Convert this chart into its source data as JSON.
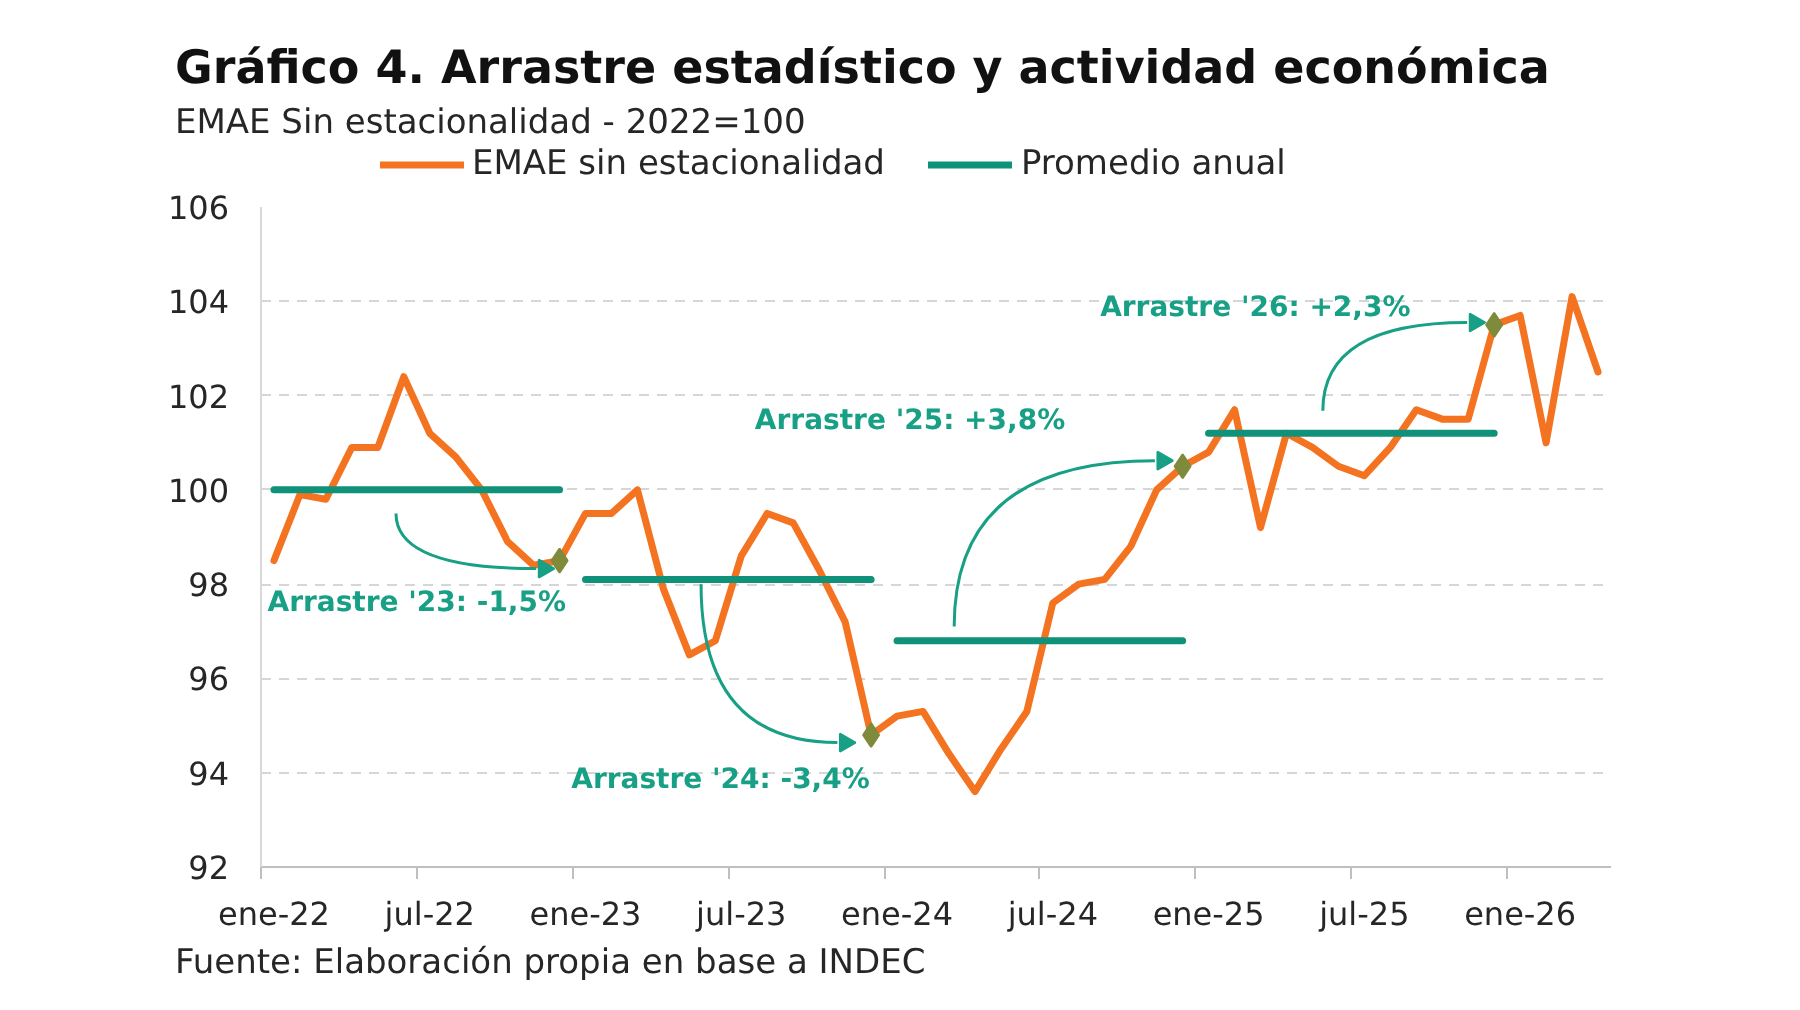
{
  "chart_data": {
    "type": "line",
    "title": "Gráfico 4. Arrastre estadístico y actividad económica",
    "subtitle": "EMAE Sin estacionalidad - 2022=100",
    "categories": [
      "ene-22",
      null,
      null,
      null,
      null,
      null,
      "jul-22",
      null,
      null,
      null,
      null,
      null,
      "ene-23",
      null,
      null,
      null,
      null,
      null,
      "jul-23",
      null,
      null,
      null,
      null,
      null,
      "ene-24",
      null,
      null,
      null,
      null,
      null,
      "jul-24",
      null,
      null,
      null,
      null,
      null,
      "ene-25",
      null,
      null,
      null,
      null,
      null,
      "jul-25",
      null,
      null,
      null,
      null,
      null,
      "ene-26",
      null,
      null,
      null
    ],
    "series": [
      {
        "name": "EMAE sin estacionalidad",
        "color": "#f47321",
        "values": [
          98.5,
          99.9,
          99.8,
          100.9,
          100.9,
          102.4,
          101.2,
          100.7,
          100.0,
          98.9,
          98.4,
          98.5,
          99.5,
          99.5,
          100.0,
          97.9,
          96.5,
          96.8,
          98.6,
          99.5,
          99.3,
          98.3,
          97.2,
          94.8,
          95.2,
          95.3,
          94.4,
          93.6,
          94.5,
          95.3,
          97.6,
          98.0,
          98.1,
          98.8,
          100.0,
          100.5,
          100.8,
          101.7,
          99.2,
          101.2,
          100.9,
          100.5,
          100.3,
          100.9,
          101.7,
          101.5,
          101.5,
          103.5,
          103.7,
          101.0,
          104.1,
          102.5
        ]
      },
      {
        "name": "Promedio anual",
        "color": "#10917a",
        "values": [
          100.0,
          100.0,
          100.0,
          100.0,
          100.0,
          100.0,
          100.0,
          100.0,
          100.0,
          100.0,
          100.0,
          100.0,
          null,
          null,
          null,
          null,
          null,
          null,
          null,
          null,
          null,
          null,
          null,
          null,
          null,
          null,
          null,
          null,
          null,
          null,
          null,
          null,
          null,
          null,
          null,
          null,
          null,
          null,
          null,
          null,
          null,
          null,
          null,
          null,
          null,
          null,
          null,
          null,
          null,
          null,
          null,
          null
        ]
      },
      {
        "color": "#10917a",
        "values": [
          null,
          null,
          null,
          null,
          null,
          null,
          null,
          null,
          null,
          null,
          null,
          null,
          98.1,
          98.1,
          98.1,
          98.1,
          98.1,
          98.1,
          98.1,
          98.1,
          98.1,
          98.1,
          98.1,
          98.1,
          null,
          null,
          null,
          null,
          null,
          null,
          null,
          null,
          null,
          null,
          null,
          null,
          null,
          null,
          null,
          null,
          null,
          null,
          null,
          null,
          null,
          null,
          null,
          null,
          null,
          null,
          null,
          null
        ]
      },
      {
        "color": "#10917a",
        "values": [
          null,
          null,
          null,
          null,
          null,
          null,
          null,
          null,
          null,
          null,
          null,
          null,
          null,
          null,
          null,
          null,
          null,
          null,
          null,
          null,
          null,
          null,
          null,
          null,
          96.8,
          96.8,
          96.8,
          96.8,
          96.8,
          96.8,
          96.8,
          96.8,
          96.8,
          96.8,
          96.8,
          96.8,
          null,
          null,
          null,
          null,
          null,
          null,
          null,
          null,
          null,
          null,
          null,
          null,
          null,
          null,
          null,
          null
        ]
      },
      {
        "color": "#10917a",
        "values": [
          null,
          null,
          null,
          null,
          null,
          null,
          null,
          null,
          null,
          null,
          null,
          null,
          null,
          null,
          null,
          null,
          null,
          null,
          null,
          null,
          null,
          null,
          null,
          null,
          null,
          null,
          null,
          null,
          null,
          null,
          null,
          null,
          null,
          null,
          null,
          null,
          101.2,
          101.2,
          101.2,
          101.2,
          101.2,
          101.2,
          101.2,
          101.2,
          101.2,
          101.2,
          101.2,
          101.2,
          null,
          null,
          null,
          null
        ]
      },
      {
        "type": "scatter",
        "marker": "diamond",
        "color": "#7f8a3a",
        "values": [
          null,
          null,
          null,
          null,
          null,
          null,
          null,
          null,
          null,
          null,
          null,
          98.5,
          null,
          null,
          null,
          null,
          null,
          null,
          null,
          null,
          null,
          null,
          null,
          94.8,
          null,
          null,
          null,
          null,
          null,
          null,
          null,
          null,
          null,
          null,
          null,
          100.5,
          null,
          null,
          null,
          null,
          null,
          null,
          null,
          null,
          null,
          null,
          null,
          103.5,
          null,
          null,
          null,
          null
        ]
      }
    ],
    "ylim": [
      92,
      106
    ],
    "yticks": [
      92,
      94,
      96,
      98,
      100,
      102,
      104,
      106
    ],
    "grid": "y",
    "legend": "top",
    "annotations": [
      "Arrastre '23: -1,5%",
      "Arrastre '24: -3,4%",
      "Arrastre '25: +3,8%",
      "Arrastre '26: +2,3%",
      "Fuente: Elaboración propia en base a INDEC"
    ]
  }
}
